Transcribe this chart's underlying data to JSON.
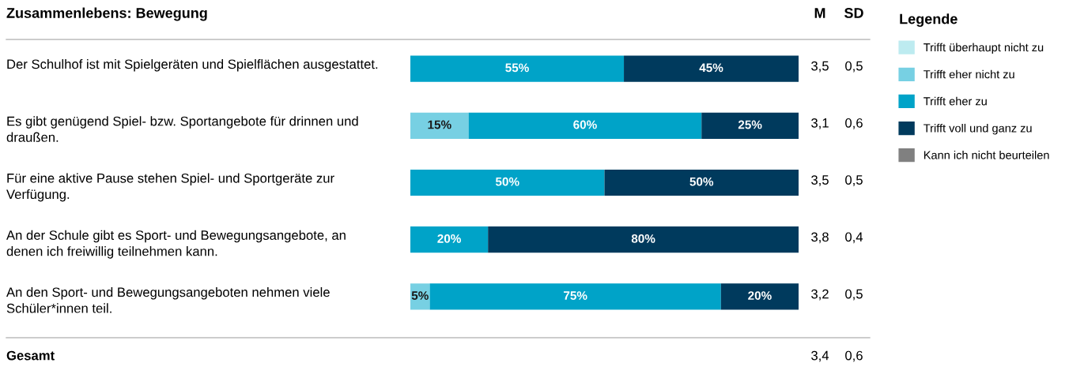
{
  "chart_data": {
    "type": "bar",
    "orientation": "horizontal",
    "stacked": true,
    "title": "Zusammenlebens: Bewegung",
    "legend_title": "Legende",
    "legend": "right",
    "xlim": [
      0,
      100
    ],
    "categories": [
      "Der Schulhof ist mit Spielgeräten und Spielflächen ausgestattet.",
      "Es gibt genügend Spiel- bzw. Sportangebote für drinnen und draußen.",
      "Für eine aktive Pause stehen Spiel- und Sportgeräte zur Verfügung.",
      "An der Schule gibt es Sport- und Bewegungsangebote, an denen ich freiwillig teilnehmen kann.",
      "An den Sport- und Bewegungsangeboten nehmen viele Schüler*innen teil."
    ],
    "series": [
      {
        "name": "Trifft überhaupt nicht zu",
        "color": "#bdebf0",
        "values": [
          0,
          0,
          0,
          0,
          0
        ],
        "value_labels": [
          null,
          null,
          null,
          null,
          null
        ]
      },
      {
        "name": "Trifft eher nicht zu",
        "color": "#77d0e3",
        "values": [
          0,
          15,
          0,
          0,
          5
        ],
        "value_labels": [
          null,
          "15%",
          null,
          null,
          "5%"
        ]
      },
      {
        "name": "Trifft eher zu",
        "color": "#00a3c8",
        "values": [
          55,
          60,
          50,
          20,
          75
        ],
        "value_labels": [
          "55%",
          "60%",
          "50%",
          "20%",
          "75%"
        ]
      },
      {
        "name": "Trifft voll und ganz zu",
        "color": "#003a5d",
        "values": [
          45,
          25,
          50,
          80,
          20
        ],
        "value_labels": [
          "45%",
          "25%",
          "50%",
          "80%",
          "20%"
        ]
      },
      {
        "name": "Kann ich nicht beurteilen",
        "color": "#808080",
        "values": [
          0,
          0,
          0,
          0,
          0
        ],
        "value_labels": [
          null,
          null,
          null,
          null,
          null
        ]
      }
    ],
    "annotations": [
      "M",
      "SD",
      "3,5",
      "0,5",
      "3,1",
      "0,6",
      "3,5",
      "0,5",
      "3,8",
      "0,4",
      "3,2",
      "0,5",
      "Gesamt",
      "3,4",
      "0,6"
    ]
  }
}
